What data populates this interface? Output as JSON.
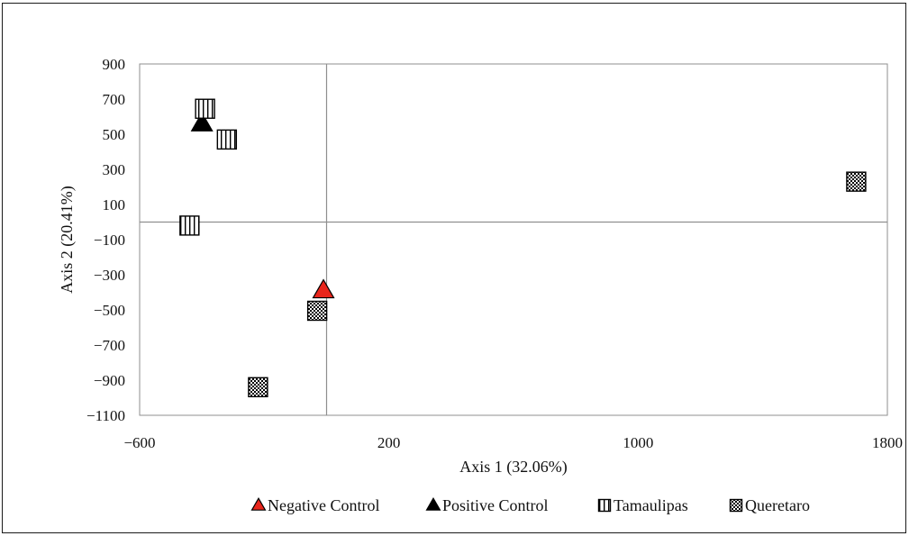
{
  "chart_data": {
    "type": "scatter",
    "xlabel": "Axis 1 (32.06%)",
    "ylabel": "Axis 2 (20.41%)",
    "xlim": [
      -600,
      1800
    ],
    "ylim": [
      -1100,
      900
    ],
    "x_ticks": [
      "−600",
      "200",
      "1000",
      "1800"
    ],
    "x_tick_values": [
      -600,
      200,
      1000,
      1800
    ],
    "y_ticks": [
      "900",
      "700",
      "500",
      "300",
      "100",
      "−100",
      "−300",
      "−500",
      "−700",
      "−900",
      "−1100"
    ],
    "y_tick_values": [
      900,
      700,
      500,
      300,
      100,
      -100,
      -300,
      -500,
      -700,
      -900,
      -1100
    ],
    "reference_lines": {
      "x": 0,
      "y": 0
    },
    "grid": false,
    "legend_position": "bottom",
    "series": [
      {
        "name": "Negative Control",
        "marker": "triangle",
        "color": "#e8251b",
        "points": [
          [
            -10,
            -390
          ]
        ]
      },
      {
        "name": "Positive Control",
        "marker": "triangle",
        "color": "#000000",
        "points": [
          [
            -400,
            560
          ]
        ]
      },
      {
        "name": "Tamaulipas",
        "marker": "vertical-stripe-square",
        "color": "#000000",
        "points": [
          [
            -390,
            645
          ],
          [
            -320,
            470
          ],
          [
            -440,
            -20
          ]
        ]
      },
      {
        "name": "Queretaro",
        "marker": "checker-square",
        "color": "#000000",
        "points": [
          [
            -30,
            -505
          ],
          [
            -220,
            -940
          ],
          [
            1700,
            230
          ]
        ]
      }
    ]
  }
}
